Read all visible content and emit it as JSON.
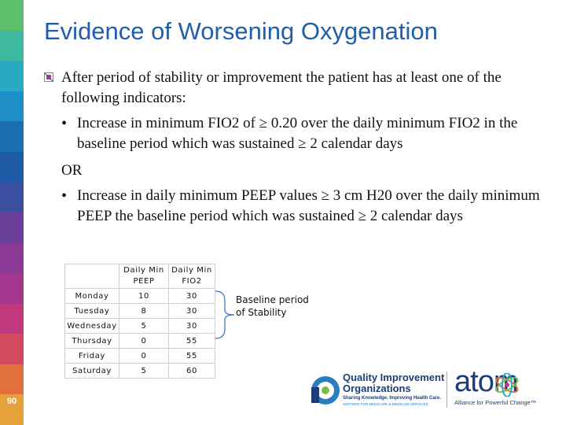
{
  "slide": {
    "number": "90",
    "title": "Evidence of Worsening Oxygenation",
    "stripe_colors": [
      "#5cbf6b",
      "#3fb8a0",
      "#2aa9c2",
      "#1e8fc6",
      "#1b6fb3",
      "#1f5aa6",
      "#3a4fa0",
      "#6a3f99",
      "#8a3a95",
      "#a2378d",
      "#c0397c",
      "#d24a5e",
      "#e0713f",
      "#e6a23a"
    ]
  },
  "content": {
    "intro": "After period of stability or improvement the patient has at least one of the following indicators:",
    "bullet1": "Increase in minimum FIO2 of ≥ 0.20 over the daily minimum FIO2 in the baseline period which was sustained ≥ 2 calendar days",
    "or": "OR",
    "bullet2": "Increase in daily minimum PEEP values ≥ 3 cm H20 over the daily minimum PEEP the baseline period which was sustained ≥ 2 calendar days"
  },
  "table": {
    "headers": [
      "",
      "Daily Min PEEP",
      "Daily Min FIO2"
    ],
    "rows": [
      {
        "day": "Monday",
        "peep": "10",
        "fio2": "30"
      },
      {
        "day": "Tuesday",
        "peep": "8",
        "fio2": "30"
      },
      {
        "day": "Wednesday",
        "peep": "5",
        "fio2": "30"
      },
      {
        "day": "Thursday",
        "peep": "0",
        "fio2": "55"
      },
      {
        "day": "Friday",
        "peep": "0",
        "fio2": "55"
      },
      {
        "day": "Saturday",
        "peep": "5",
        "fio2": "60"
      }
    ],
    "baseline_label": "Baseline period of Stability"
  },
  "logos": {
    "qio_name_line1": "Quality Improvement",
    "qio_name_line2": "Organizations",
    "qio_tagline": "Sharing Knowledge. Improving Health Care.",
    "qio_cms": "CENTERS FOR MEDICARE & MEDICAID SERVICES",
    "atom_word": "atom",
    "atom_tagline": "Alliance for Powerful Change™"
  }
}
